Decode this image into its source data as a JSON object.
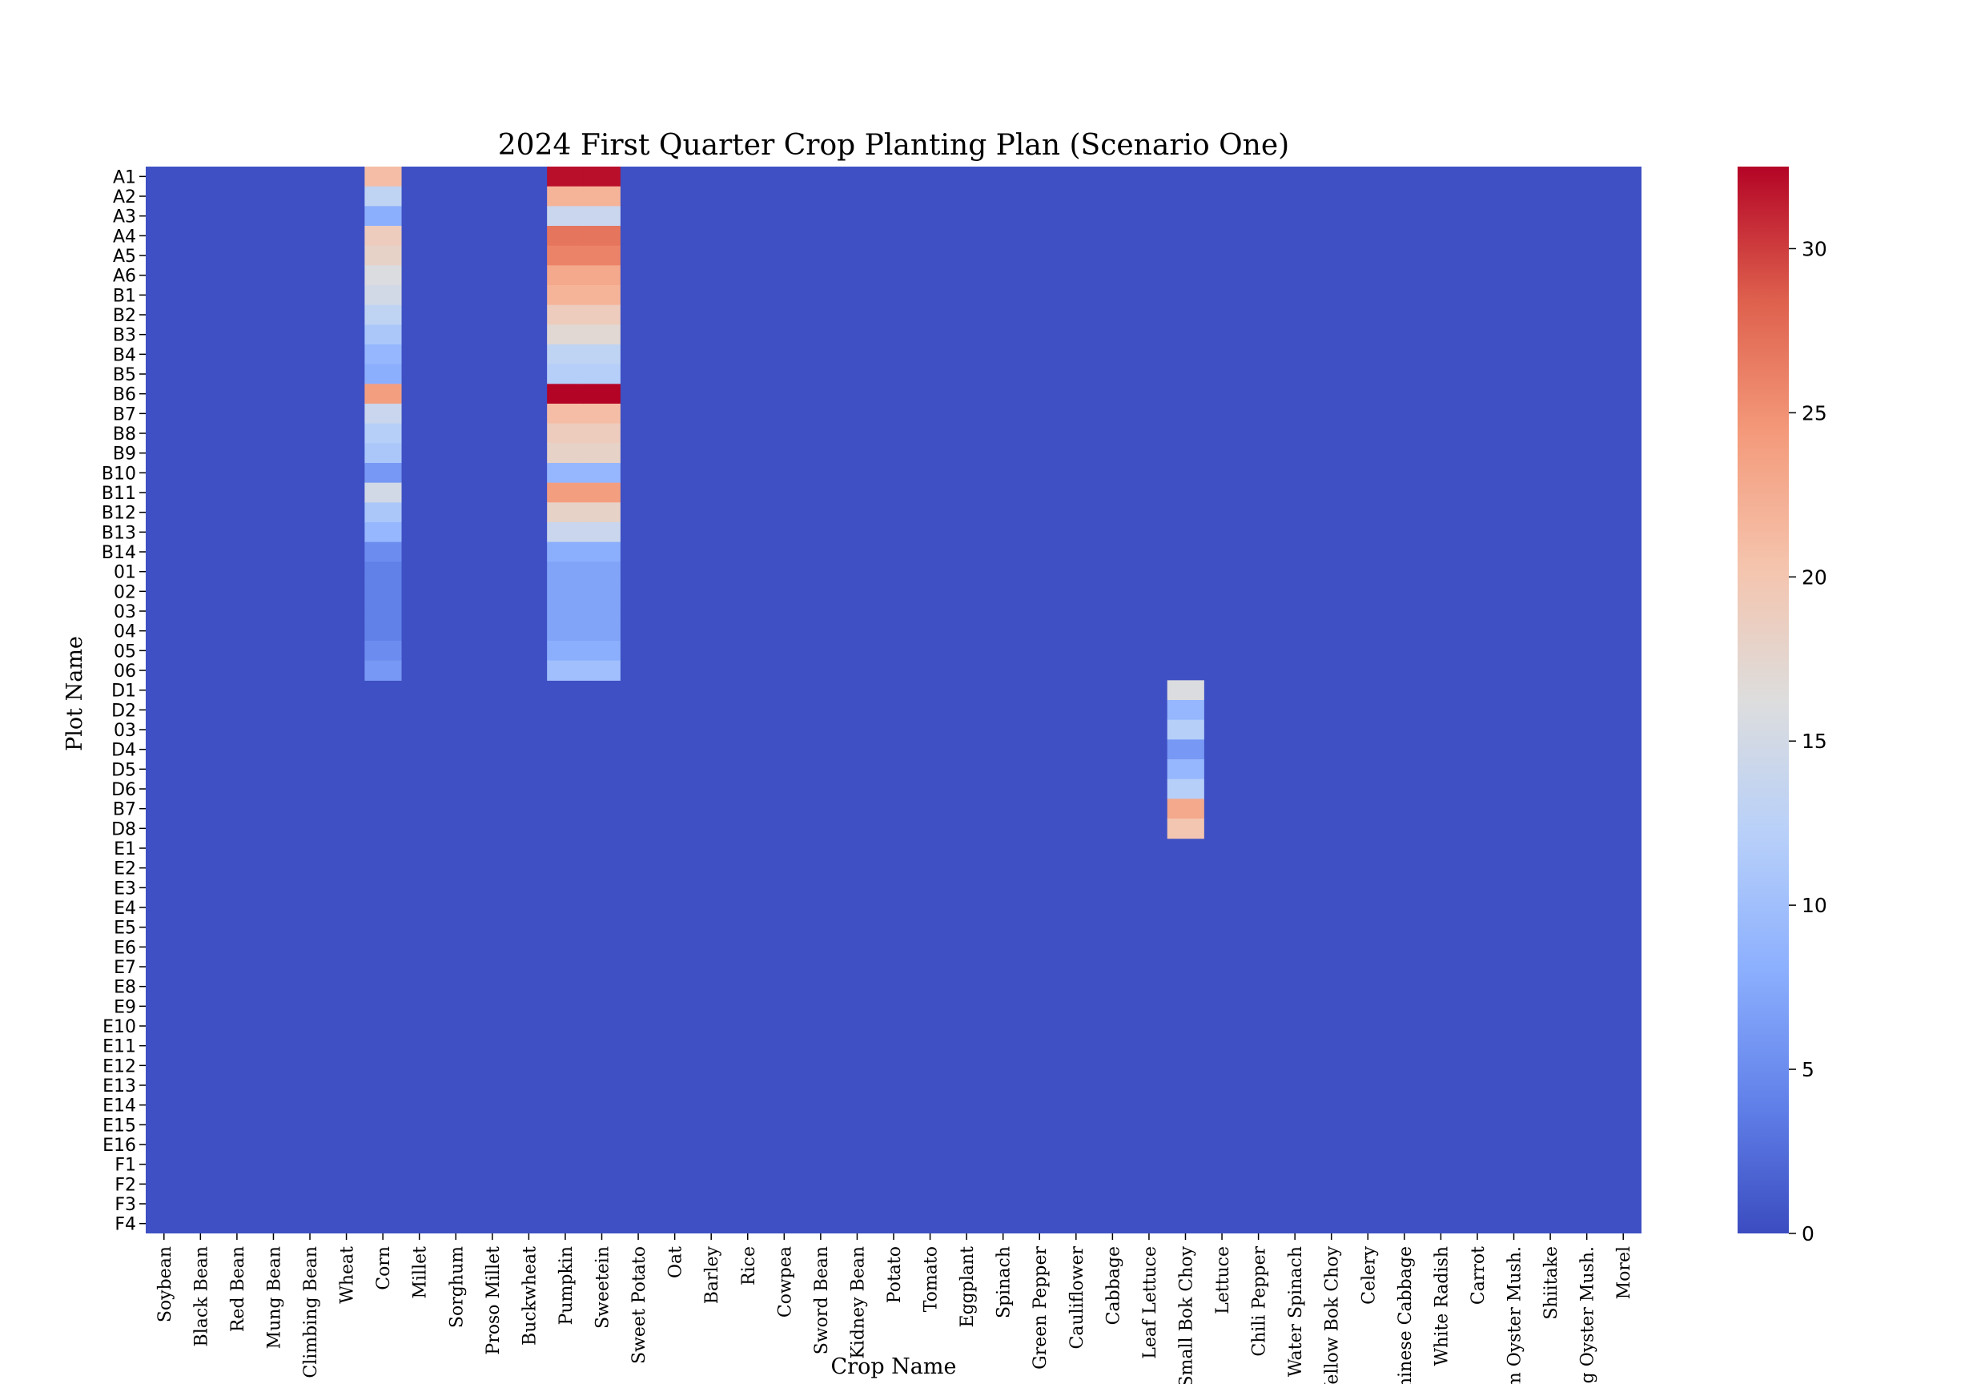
{
  "chart_data": {
    "type": "heatmap",
    "title": "2024 First Quarter Crop Planting Plan (Scenario One)",
    "xlabel": "Crop Name",
    "ylabel": "Plot Name",
    "colormap": "coolwarm",
    "colorbar": {
      "min": 0,
      "max": 32.5,
      "ticks": [
        0,
        5,
        10,
        15,
        20,
        25,
        30
      ],
      "position": "right"
    },
    "legend": "none",
    "grid": false,
    "background_value": 0.3,
    "crops": [
      "Soybean",
      "Black Bean",
      "Red Bean",
      "Mung Bean",
      "Climbing Bean",
      "Wheat",
      "Corn",
      "Millet",
      "Sorghum",
      "Proso Millet",
      "Buckwheat",
      "Pumpkin",
      "Sweetein",
      "Sweet Potato",
      "Oat",
      "Barley",
      "Rice",
      "Cowpea",
      "Sword Bean",
      "Kidney Bean",
      "Potato",
      "Tomato",
      "Eggplant",
      "Spinach",
      "Green Pepper",
      "Cauliflower",
      "Cabbage",
      "Leaf Lettuce",
      "Small Bok Choy",
      "Lettuce",
      "Chili Pepper",
      "Water Spinach",
      "Yellow Bok Choy",
      "Celery",
      "Chinese Cabbage",
      "White Radish",
      "Carrot",
      "Elm Oyster Mush.",
      "Shiitake",
      "King Oyster Mush.",
      "Morel"
    ],
    "plots": [
      "A1",
      "A2",
      "A3",
      "A4",
      "A5",
      "A6",
      "B1",
      "B2",
      "B3",
      "B4",
      "B5",
      "B6",
      "B7",
      "B8",
      "B9",
      "B10",
      "B11",
      "B12",
      "B13",
      "B14",
      "01",
      "02",
      "03",
      "04",
      "05",
      "06",
      "D1",
      "D2",
      "03",
      "D4",
      "D5",
      "D6",
      "B7",
      "D8",
      "E1",
      "E2",
      "E3",
      "E4",
      "E5",
      "E6",
      "E7",
      "E8",
      "E9",
      "E10",
      "E11",
      "E12",
      "E13",
      "E14",
      "E15",
      "E16",
      "F1",
      "F2",
      "F3",
      "F4"
    ],
    "series": [
      {
        "crop": "Corn",
        "values": [
          21,
          13,
          8,
          19,
          18,
          16,
          15,
          13,
          11,
          9,
          8,
          24,
          14,
          12,
          11,
          6,
          15,
          11,
          9,
          5,
          4,
          4,
          4,
          4,
          5,
          6
        ]
      },
      {
        "crop": "Pumpkin",
        "values": [
          32,
          22,
          14,
          27,
          26,
          23,
          22,
          19,
          17,
          13,
          12,
          33,
          21,
          19,
          18,
          9,
          24,
          18,
          14,
          8,
          7,
          7,
          7,
          7,
          8,
          10
        ]
      },
      {
        "crop": "Sweetein",
        "values": [
          32,
          22,
          14,
          27,
          26,
          23,
          22,
          19,
          17,
          13,
          12,
          33,
          21,
          19,
          18,
          9,
          24,
          18,
          14,
          8,
          7,
          7,
          7,
          7,
          8,
          10
        ]
      },
      {
        "crop": "Small Bok Choy",
        "row_offset": 26,
        "values": [
          16,
          9,
          12,
          6,
          9,
          12,
          23,
          20
        ]
      }
    ]
  }
}
